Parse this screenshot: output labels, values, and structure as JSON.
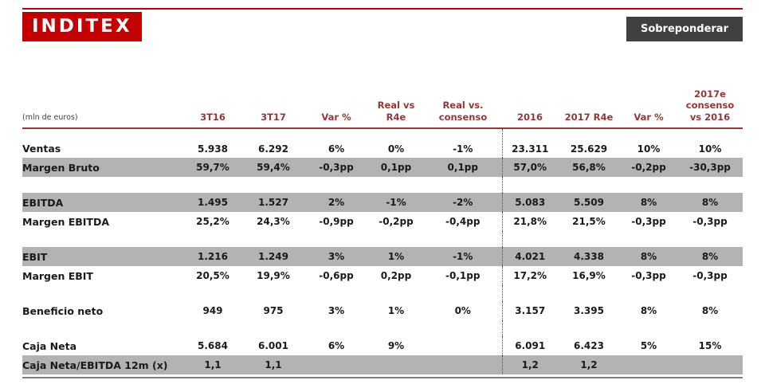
{
  "brand": {
    "logo_text": "INDITEX",
    "rating_label": "Sobreponderar"
  },
  "colors": {
    "red": "#c40000",
    "maroon": "#953735",
    "shaded_row": "#b3b3b3",
    "rating_bg": "#404040",
    "bottom_rule": "#808080"
  },
  "table": {
    "unit_label": "(mln de euros)",
    "divider_before_column": 5,
    "columns": [
      [
        "3T16"
      ],
      [
        "3T17"
      ],
      [
        "Var %"
      ],
      [
        "Real vs",
        "R4e"
      ],
      [
        "Real vs.",
        "consenso"
      ],
      [
        "2016"
      ],
      [
        "2017 R4e"
      ],
      [
        "Var %"
      ],
      [
        "2017e",
        "consenso",
        "vs 2016"
      ]
    ],
    "rows": [
      {
        "label": "Ventas",
        "shaded": false,
        "values": [
          "5.938",
          "6.292",
          "6%",
          "0%",
          "-1%",
          "23.311",
          "25.629",
          "10%",
          "10%"
        ]
      },
      {
        "label": "Margen Bruto",
        "shaded": true,
        "values": [
          "59,7%",
          "59,4%",
          "-0,3pp",
          "0,1pp",
          "0,1pp",
          "57,0%",
          "56,8%",
          "-0,2pp",
          "-30,3pp"
        ]
      },
      {
        "spacer": true
      },
      {
        "label": "EBITDA",
        "shaded": true,
        "values": [
          "1.495",
          "1.527",
          "2%",
          "-1%",
          "-2%",
          "5.083",
          "5.509",
          "8%",
          "8%"
        ]
      },
      {
        "label": "Margen EBITDA",
        "shaded": false,
        "values": [
          "25,2%",
          "24,3%",
          "-0,9pp",
          "-0,2pp",
          "-0,4pp",
          "21,8%",
          "21,5%",
          "-0,3pp",
          "-0,3pp"
        ]
      },
      {
        "spacer": true
      },
      {
        "label": "EBIT",
        "shaded": true,
        "values": [
          "1.216",
          "1.249",
          "3%",
          "1%",
          "-1%",
          "4.021",
          "4.338",
          "8%",
          "8%"
        ]
      },
      {
        "label": "Margen EBIT",
        "shaded": false,
        "values": [
          "20,5%",
          "19,9%",
          "-0,6pp",
          "0,2pp",
          "-0,1pp",
          "17,2%",
          "16,9%",
          "-0,3pp",
          "-0,3pp"
        ]
      },
      {
        "spacer": true
      },
      {
        "label": "Beneficio neto",
        "shaded": false,
        "values": [
          "949",
          "975",
          "3%",
          "1%",
          "0%",
          "3.157",
          "3.395",
          "8%",
          "8%"
        ]
      },
      {
        "spacer": true
      },
      {
        "label": "Caja Neta",
        "shaded": false,
        "values": [
          "5.684",
          "6.001",
          "6%",
          "9%",
          "",
          "6.091",
          "6.423",
          "5%",
          "15%"
        ]
      },
      {
        "label": "Caja Neta/EBITDA 12m (x)",
        "shaded": true,
        "values": [
          "1,1",
          "1,1",
          "",
          "",
          "",
          "1,2",
          "1,2",
          "",
          ""
        ]
      }
    ]
  }
}
